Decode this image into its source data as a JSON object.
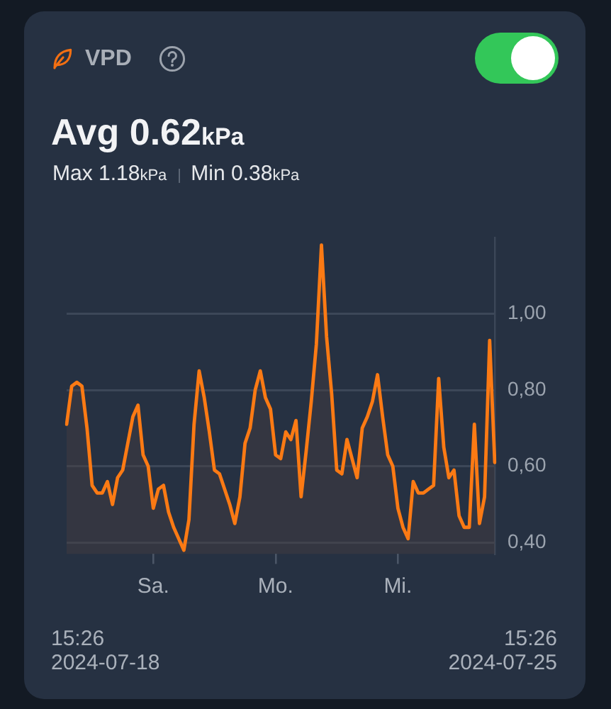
{
  "chart_data": {
    "type": "area",
    "title": "VPD",
    "subtitle": "Avg 0.62kPa",
    "annotations": [
      "Max 1.18kPa",
      "Min 0.38kPa",
      "15:26 2024-07-18",
      "15:26 2024-07-25"
    ],
    "categories": [
      null,
      null,
      null,
      null,
      null,
      null,
      null,
      null,
      null,
      null,
      null,
      null,
      null,
      null,
      null,
      null,
      null,
      "Sa.",
      null,
      null,
      null,
      null,
      null,
      null,
      null,
      null,
      null,
      null,
      null,
      null,
      null,
      null,
      null,
      null,
      null,
      null,
      null,
      null,
      null,
      null,
      null,
      "Mo.",
      null,
      null,
      null,
      null,
      null,
      null,
      null,
      null,
      null,
      null,
      null,
      null,
      null,
      null,
      null,
      null,
      null,
      null,
      null,
      null,
      null,
      null,
      null,
      "Mi.",
      null,
      null,
      null,
      null,
      null,
      null,
      null,
      null,
      null,
      null,
      null,
      null,
      null,
      null,
      null,
      null,
      null,
      null,
      null
    ],
    "values": [
      0.71,
      0.81,
      0.82,
      0.81,
      0.7,
      0.55,
      0.53,
      0.53,
      0.56,
      0.5,
      0.57,
      0.59,
      0.66,
      0.73,
      0.76,
      0.63,
      0.6,
      0.49,
      0.54,
      0.55,
      0.48,
      0.44,
      0.41,
      0.38,
      0.46,
      0.71,
      0.85,
      0.78,
      0.69,
      0.59,
      0.58,
      0.54,
      0.5,
      0.45,
      0.52,
      0.66,
      0.7,
      0.8,
      0.85,
      0.78,
      0.75,
      0.63,
      0.62,
      0.69,
      0.67,
      0.72,
      0.52,
      0.64,
      0.77,
      0.92,
      1.18,
      0.94,
      0.79,
      0.59,
      0.58,
      0.67,
      0.62,
      0.57,
      0.7,
      0.73,
      0.77,
      0.84,
      0.73,
      0.63,
      0.6,
      0.49,
      0.44,
      0.41,
      0.56,
      0.53,
      0.53,
      0.54,
      0.55,
      0.83,
      0.65,
      0.57,
      0.59,
      0.47,
      0.44,
      0.44,
      0.71,
      0.45,
      0.52,
      0.93,
      0.61
    ],
    "color": "#fb7a14",
    "ylim": [
      0.37,
      1.2
    ],
    "yticks": [
      {
        "value": 0.4,
        "label": "0,40"
      },
      {
        "value": 0.6,
        "label": "0,60"
      },
      {
        "value": 0.8,
        "label": "0,80"
      },
      {
        "value": 1.0,
        "label": "1,00"
      }
    ],
    "grid": "y",
    "legend": false,
    "marker": "none",
    "line_style": "solid"
  }
}
